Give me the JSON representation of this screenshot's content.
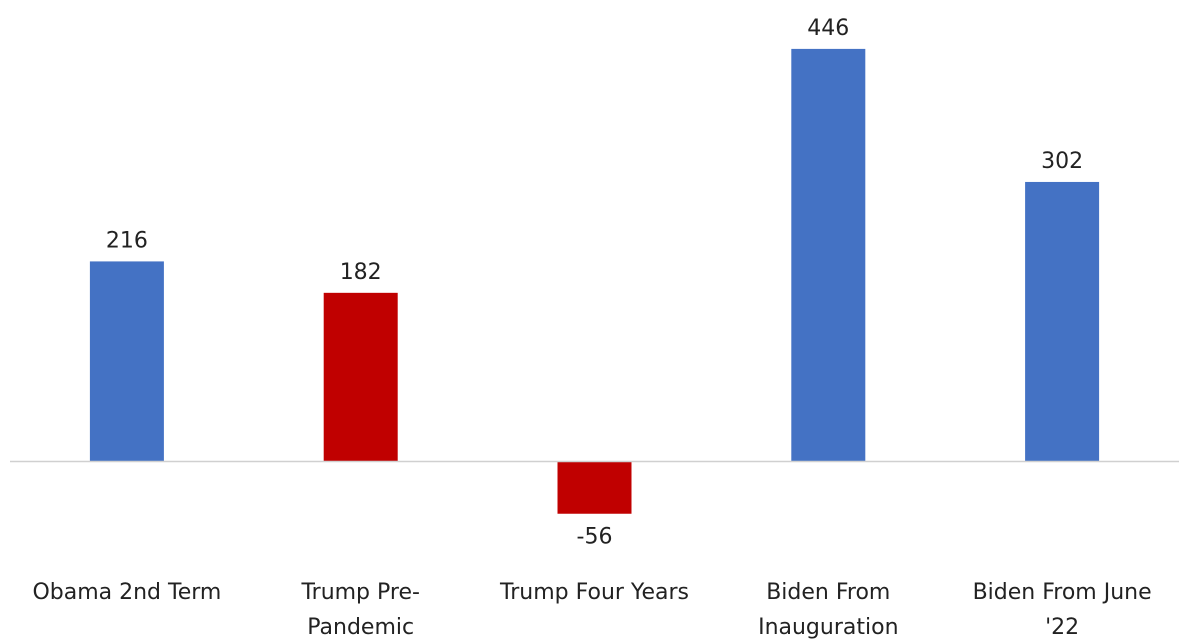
{
  "chart_data": {
    "type": "bar",
    "categories": [
      [
        "Obama 2nd Term"
      ],
      [
        "Trump Pre-",
        "Pandemic"
      ],
      [
        "Trump Four Years"
      ],
      [
        "Biden From",
        "Inauguration"
      ],
      [
        "Biden From June",
        "'22"
      ]
    ],
    "values": [
      216,
      182,
      -56,
      446,
      302
    ],
    "data_labels": [
      "216",
      "182",
      "-56",
      "446",
      "302"
    ],
    "colors": [
      "#4472C4",
      "#C00000",
      "#C00000",
      "#4472C4",
      "#4472C4"
    ],
    "title": "",
    "xlabel": "",
    "ylabel": "",
    "grid": false,
    "legend": "none"
  }
}
